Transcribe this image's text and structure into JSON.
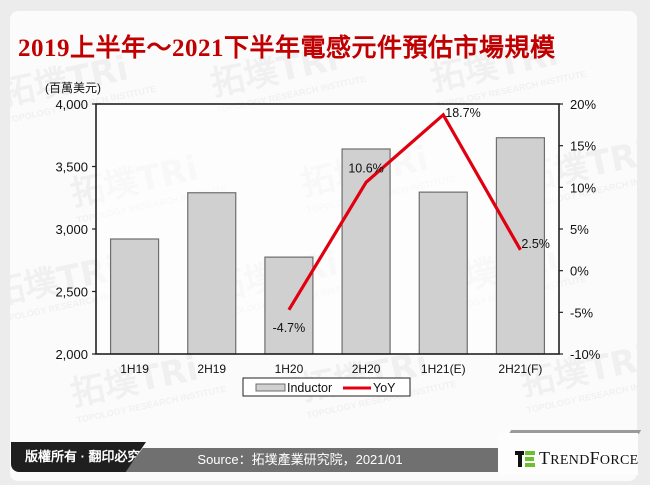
{
  "title": "2019上半年～2021下半年電感元件預估市場規模",
  "unit_label": "(百萬美元)",
  "footer": {
    "copyright": "版權所有 · 翻印必究",
    "source": "Source：拓墣產業研究院，2021/01",
    "brand": "TrendForce"
  },
  "watermark": {
    "cn": "拓墣TRi",
    "en": "TOPOLOGY RESEARCH INSTITUTE"
  },
  "colors": {
    "title": "#c00000",
    "bar_fill": "#d0d0d0",
    "bar_stroke": "#6e6e6e",
    "line": "#e00010"
  },
  "chart_data": {
    "type": "bar+line",
    "title": "2019上半年～2021下半年電感元件預估市場規模",
    "categories": [
      "1H19",
      "2H19",
      "1H20",
      "2H20",
      "1H21(E)",
      "2H21(F)"
    ],
    "series": [
      {
        "name": "Inductor",
        "type": "bar",
        "axis": "left",
        "values": [
          2920,
          3290,
          2775,
          3640,
          3295,
          3730
        ]
      },
      {
        "name": "YoY",
        "type": "line",
        "axis": "right",
        "values": [
          null,
          null,
          -4.7,
          10.6,
          18.7,
          2.5
        ],
        "labels": [
          "",
          "",
          "-4.7%",
          "10.6%",
          "18.7%",
          "2.5%"
        ]
      }
    ],
    "ylabel": "(百萬美元)",
    "ylim": [
      2000,
      4000
    ],
    "yticks": [
      "2,000",
      "2,500",
      "3,000",
      "3,500",
      "4,000"
    ],
    "y2lim": [
      -10,
      20
    ],
    "y2ticks": [
      "-10%",
      "-5%",
      "0%",
      "5%",
      "10%",
      "15%",
      "20%"
    ],
    "legend": [
      "Inductor",
      "YoY"
    ],
    "legend_position": "bottom",
    "grid": false
  }
}
